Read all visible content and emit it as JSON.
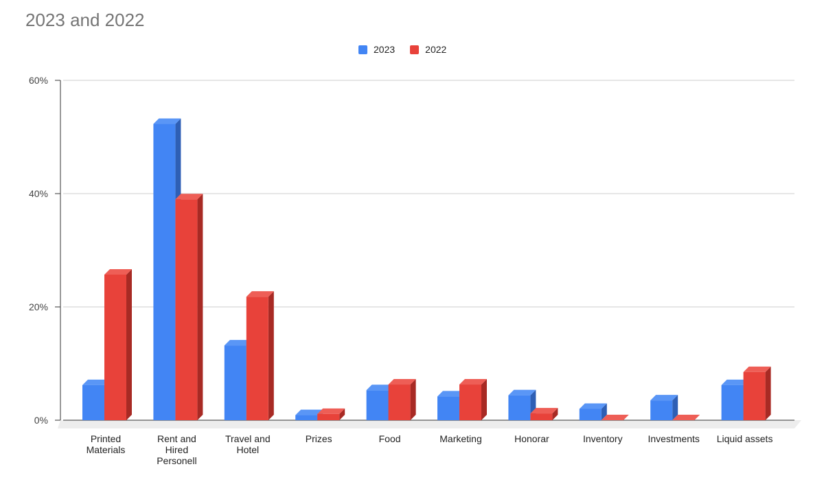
{
  "chart_data": {
    "type": "bar",
    "title": "2023 and 2022",
    "xlabel": "",
    "ylabel": "",
    "ylim": [
      0,
      60
    ],
    "yticks": [
      "0%",
      "20%",
      "40%",
      "60%"
    ],
    "categories": [
      [
        "Printed",
        "Materials"
      ],
      [
        "Rent and",
        "Hired",
        "Personell"
      ],
      [
        "Travel and",
        "Hotel"
      ],
      [
        "Prizes"
      ],
      [
        "Food"
      ],
      [
        "Marketing"
      ],
      [
        "Honorar"
      ],
      [
        "Inventory"
      ],
      [
        "Investments"
      ],
      [
        "Liquid assets"
      ]
    ],
    "series": [
      {
        "name": "2023",
        "color": "#4285f4",
        "side": "#2e5fb5",
        "top": "#5a96f6",
        "values": [
          6.2,
          52.3,
          13.2,
          0.9,
          5.3,
          4.2,
          4.4,
          2.0,
          3.5,
          6.2
        ]
      },
      {
        "name": "2022",
        "color": "#e8423a",
        "side": "#a82a24",
        "top": "#ee5e56",
        "values": [
          25.7,
          39.0,
          21.8,
          1.1,
          6.3,
          6.3,
          1.2,
          0.0,
          0.0,
          8.5
        ]
      }
    ],
    "grid": true,
    "legend_position": "top-center"
  }
}
